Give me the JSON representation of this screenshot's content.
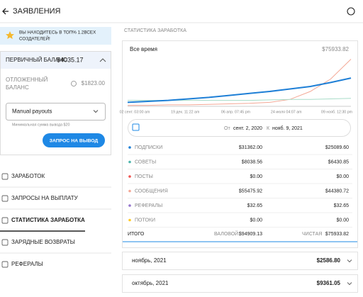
{
  "header": {
    "title": "ЗАЯВЛЕНИЯ"
  },
  "banner": {
    "text_line1": "ВЫ НАХОДИТЕСЬ В ТОП% 1.2ВСЕХ",
    "text_line2": "СОЗДАТЕЛЕЙ!"
  },
  "balance": {
    "label": "ПЕРВИЧНЫЙ БАЛАНС",
    "amount": "$4035.17"
  },
  "pending": {
    "label_line1": "ОТЛОЖЕННЫЙ",
    "label_line2": "БАЛАНС",
    "amount": "$1823.00"
  },
  "payout": {
    "select": "Manual payouts",
    "hint": "Минимальная сумма вывода $20",
    "button": "ЗАПРОС НА ВЫВОД"
  },
  "nav": {
    "items": [
      "ЗАРАБОТОК",
      "ЗАПРОСЫ НА ВЫПЛАТУ",
      "СТАТИСТИКА ЗАРАБОТКА",
      "ЗАРЯДНЫЕ ВОЗВРАТЫ",
      "РЕФЕРАЛЫ"
    ],
    "active": 2
  },
  "stats": {
    "title": "СТАТИСТИКА ЗАРАБОТКА",
    "period": "Все время",
    "total": "$75933.82",
    "chart_data": {
      "type": "line",
      "x_labels": [
        "02 сент. 03:00 am",
        "19 дек. 11:22 am",
        "06 апр. 07:45 pm",
        "24 июля 04:07 am",
        "09 нояб. 12:30 pm"
      ],
      "ylim": [
        0,
        100
      ],
      "series": [
        {
          "color": "#f4a896",
          "values": [
            2,
            2,
            3,
            3,
            4,
            5,
            6,
            8,
            14,
            30,
            55,
            95
          ]
        },
        {
          "color": "#a8dcc8",
          "values": [
            12,
            12,
            12,
            12,
            12,
            12,
            12,
            13,
            14,
            14,
            15,
            16
          ]
        },
        {
          "color": "#1e7fd6",
          "values": [
            8,
            10,
            12,
            15,
            18,
            22,
            26,
            30,
            35,
            40,
            48,
            57
          ]
        }
      ]
    },
    "range": {
      "from_label": "От",
      "from": "сент. 2, 2020",
      "to_label": "К",
      "to": "нояб. 9, 2021"
    },
    "rows": [
      {
        "name": "ПОДПИСКИ",
        "gross": "$31362.00",
        "net": "$25089.60",
        "color": "#1e7fd6"
      },
      {
        "name": "СОВЕТЫ",
        "gross": "$8038.56",
        "net": "$6430.85",
        "color": "#4db6ac"
      },
      {
        "name": "ПОСТЫ",
        "gross": "$0.00",
        "net": "$0.00",
        "color": "#ef5350"
      },
      {
        "name": "СООБЩЕНИЯ",
        "gross": "$55475.92",
        "net": "$44380.72",
        "color": "#f4a896"
      },
      {
        "name": "РЕФЕРАЛЫ",
        "gross": "$32.65",
        "net": "$32.65",
        "color": "#9575cd"
      },
      {
        "name": "ПОТОКИ",
        "gross": "$0.00",
        "net": "$0.00",
        "color": "#ffca28"
      }
    ],
    "totals": {
      "label": "ИТОГО",
      "gross_label": "ВАЛОВОЙ",
      "gross": "$94909.13",
      "net_label": "ЧИСТАЯ",
      "net": "$75933.82"
    }
  },
  "months": [
    {
      "label": "ноябрь, 2021",
      "amount": "$2586.80"
    },
    {
      "label": "октябрь, 2021",
      "amount": "$9361.05"
    }
  ]
}
